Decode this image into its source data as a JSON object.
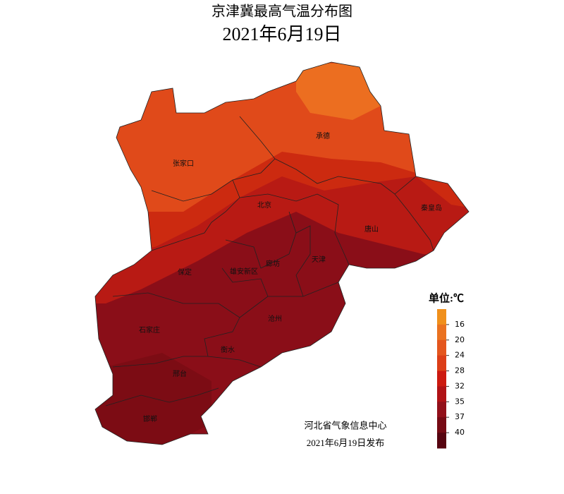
{
  "header": {
    "title": "京津冀最高气温分布图",
    "subtitle": "2021年6月19日"
  },
  "places": [
    {
      "label": "张家口"
    },
    {
      "label": "承德"
    },
    {
      "label": "北京"
    },
    {
      "label": "秦皇岛"
    },
    {
      "label": "唐山"
    },
    {
      "label": "天津"
    },
    {
      "label": "廊坊"
    },
    {
      "label": "雄安新区"
    },
    {
      "label": "保定"
    },
    {
      "label": "沧州"
    },
    {
      "label": "石家庄"
    },
    {
      "label": "衡水"
    },
    {
      "label": "邢台"
    },
    {
      "label": "邯郸"
    }
  ],
  "legend": {
    "title": "单位:℃",
    "ticks": [
      16,
      20,
      24,
      28,
      32,
      35,
      37,
      40
    ],
    "colors": [
      "#f0901c",
      "#ea7220",
      "#e4561e",
      "#dc3e18",
      "#cc1a10",
      "#b01216",
      "#92101a",
      "#760a14",
      "#560410"
    ]
  },
  "footer": {
    "source": "河北省气象信息中心",
    "date": "2021年6月19日发布"
  }
}
